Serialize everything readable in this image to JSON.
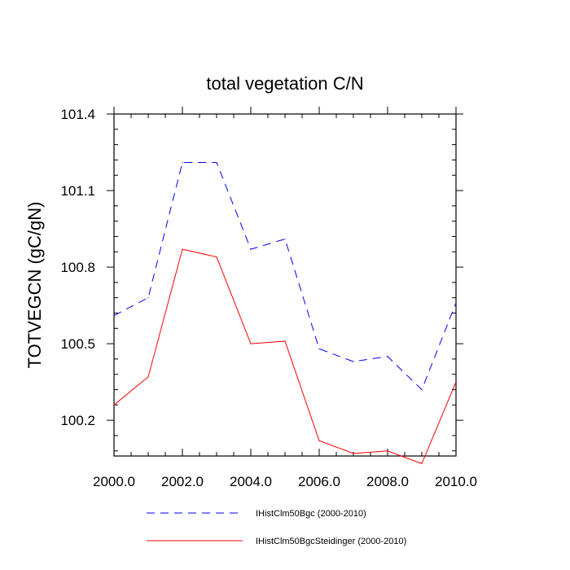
{
  "chart_data": {
    "type": "line",
    "title": "total vegetation C/N",
    "xlabel": "",
    "ylabel": "TOTVEGCN  (gC/gN)",
    "xlim": [
      2000,
      2010
    ],
    "ylim": [
      100.06,
      101.4
    ],
    "x_ticks": [
      2000,
      2002,
      2004,
      2006,
      2008,
      2010
    ],
    "x_tick_labels": [
      "2000.0",
      "2002.0",
      "2004.0",
      "2006.0",
      "2008.0",
      "2010.0"
    ],
    "y_ticks": [
      100.2,
      100.5,
      100.8,
      101.1,
      101.4
    ],
    "y_tick_labels": [
      "100.2",
      "100.5",
      "100.8",
      "101.1",
      "101.4"
    ],
    "grid": false,
    "legend_placement": "bottom",
    "x": [
      2000,
      2001,
      2002,
      2003,
      2004,
      2005,
      2006,
      2007,
      2008,
      2009,
      2010
    ],
    "series": [
      {
        "name": "IHistClm50Bgc (2000-2010)",
        "color": "#0000ff",
        "style": "dashed",
        "values": [
          100.61,
          100.68,
          101.21,
          101.21,
          100.87,
          100.91,
          100.48,
          100.43,
          100.45,
          100.32,
          100.66
        ]
      },
      {
        "name": "IHistClm50BgcSteidinger (2000-2010)",
        "color": "#ff0000",
        "style": "solid",
        "values": [
          100.26,
          100.37,
          100.87,
          100.84,
          100.5,
          100.51,
          100.12,
          100.07,
          100.08,
          100.03,
          100.35
        ]
      }
    ]
  }
}
